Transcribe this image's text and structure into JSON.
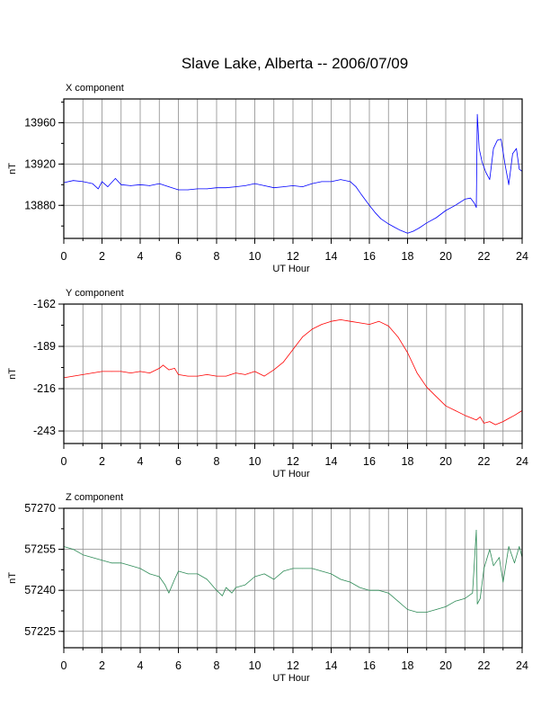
{
  "title": "Slave Lake, Alberta -- 2006/07/09",
  "chart_data": [
    {
      "type": "line",
      "label": "X component",
      "xlabel": "UT Hour",
      "ylabel": "nT",
      "color": "#0000ff",
      "xlim": [
        0,
        24
      ],
      "ylim": [
        13848,
        13983
      ],
      "xticks": [
        "0",
        "2",
        "4",
        "6",
        "8",
        "10",
        "12",
        "14",
        "16",
        "18",
        "20",
        "22",
        "24"
      ],
      "yticks": [
        13880,
        13920,
        13960
      ],
      "grid": true,
      "x": [
        0,
        0.5,
        1,
        1.5,
        1.8,
        2,
        2.3,
        2.7,
        3,
        3.5,
        4,
        4.5,
        5,
        5.5,
        6,
        6.5,
        7,
        7.5,
        8,
        8.5,
        9,
        9.5,
        10,
        10.5,
        11,
        11.5,
        12,
        12.5,
        13,
        13.5,
        14,
        14.5,
        15,
        15.3,
        15.6,
        16,
        16.3,
        16.6,
        17,
        17.3,
        17.6,
        18,
        18.3,
        18.6,
        19,
        19.5,
        20,
        20.5,
        21,
        21.3,
        21.5,
        21.6,
        21.65,
        21.75,
        21.9,
        22.1,
        22.3,
        22.5,
        22.7,
        22.9,
        23.1,
        23.3,
        23.5,
        23.7,
        23.85,
        24
      ],
      "y": [
        13902,
        13904,
        13903,
        13901,
        13896,
        13903,
        13898,
        13906,
        13900,
        13899,
        13900,
        13899,
        13901,
        13898,
        13895,
        13895,
        13896,
        13896,
        13897,
        13897,
        13898,
        13899,
        13901,
        13899,
        13897,
        13898,
        13899,
        13898,
        13901,
        13903,
        13903,
        13905,
        13903,
        13898,
        13890,
        13880,
        13873,
        13867,
        13862,
        13859,
        13856,
        13853,
        13855,
        13858,
        13863,
        13868,
        13875,
        13880,
        13886,
        13887,
        13882,
        13878,
        13968,
        13935,
        13922,
        13912,
        13905,
        13935,
        13943,
        13944,
        13920,
        13900,
        13930,
        13935,
        13915,
        13913
      ]
    },
    {
      "type": "line",
      "label": "Y component",
      "xlabel": "UT Hour",
      "ylabel": "nT",
      "color": "#ff0000",
      "xlim": [
        0,
        24
      ],
      "ylim": [
        -251,
        -162
      ],
      "xticks": [
        "0",
        "2",
        "4",
        "6",
        "8",
        "10",
        "12",
        "14",
        "16",
        "18",
        "20",
        "22",
        "24"
      ],
      "yticks": [
        -162,
        -189,
        -216,
        -243
      ],
      "grid": true,
      "x": [
        0,
        0.5,
        1,
        1.5,
        2,
        2.5,
        3,
        3.5,
        4,
        4.5,
        5,
        5.2,
        5.5,
        5.8,
        6,
        6.5,
        7,
        7.5,
        8,
        8.5,
        9,
        9.5,
        10,
        10.5,
        11,
        11.5,
        12,
        12.5,
        13,
        13.5,
        14,
        14.5,
        15,
        15.5,
        16,
        16.5,
        17,
        17.5,
        18,
        18.5,
        19,
        19.5,
        20,
        20.5,
        21,
        21.4,
        21.6,
        21.8,
        22,
        22.3,
        22.6,
        23,
        23.3,
        23.6,
        24
      ],
      "y": [
        -209,
        -208,
        -207,
        -206,
        -205,
        -205,
        -205,
        -206,
        -205,
        -206,
        -203,
        -201,
        -204,
        -203,
        -207,
        -208,
        -208,
        -207,
        -208,
        -208,
        -206,
        -207,
        -205,
        -208,
        -204,
        -199,
        -191,
        -183,
        -178,
        -175,
        -173,
        -172,
        -173,
        -174,
        -175,
        -173,
        -176,
        -183,
        -193,
        -206,
        -215,
        -221,
        -227,
        -230,
        -233,
        -235,
        -236,
        -234,
        -238,
        -237,
        -239,
        -237,
        -235,
        -233,
        -230
      ]
    },
    {
      "type": "line",
      "label": "Z component",
      "xlabel": "UT Hour",
      "ylabel": "nT",
      "color": "#2e8b57",
      "xlim": [
        0,
        24
      ],
      "ylim": [
        57219,
        57270
      ],
      "xticks": [
        "0",
        "2",
        "4",
        "6",
        "8",
        "10",
        "12",
        "14",
        "16",
        "18",
        "20",
        "22",
        "24"
      ],
      "yticks": [
        57225,
        57240,
        57255,
        57270
      ],
      "grid": true,
      "x": [
        0,
        0.5,
        1,
        1.5,
        2,
        2.5,
        3,
        3.5,
        4,
        4.5,
        5,
        5.3,
        5.5,
        5.8,
        6,
        6.5,
        7,
        7.5,
        8,
        8.3,
        8.5,
        8.8,
        9,
        9.5,
        10,
        10.5,
        11,
        11.5,
        12,
        12.5,
        13,
        13.5,
        14,
        14.5,
        15,
        15.5,
        16,
        16.5,
        17,
        17.5,
        18,
        18.5,
        19,
        19.5,
        20,
        20.5,
        21,
        21.4,
        21.6,
        21.65,
        21.8,
        22,
        22.3,
        22.5,
        22.8,
        23,
        23.3,
        23.6,
        23.85,
        24
      ],
      "y": [
        57256,
        57255,
        57253,
        57252,
        57251,
        57250,
        57250,
        57249,
        57248,
        57246,
        57245,
        57242,
        57239,
        57244,
        57247,
        57246,
        57246,
        57244,
        57240,
        57238,
        57241,
        57239,
        57241,
        57242,
        57245,
        57246,
        57244,
        57247,
        57248,
        57248,
        57248,
        57247,
        57246,
        57244,
        57243,
        57241,
        57240,
        57240,
        57239,
        57236,
        57233,
        57232,
        57232,
        57233,
        57234,
        57236,
        57237,
        57239,
        57262,
        57235,
        57237,
        57248,
        57255,
        57249,
        57252,
        57243,
        57256,
        57250,
        57256,
        57252
      ]
    }
  ]
}
